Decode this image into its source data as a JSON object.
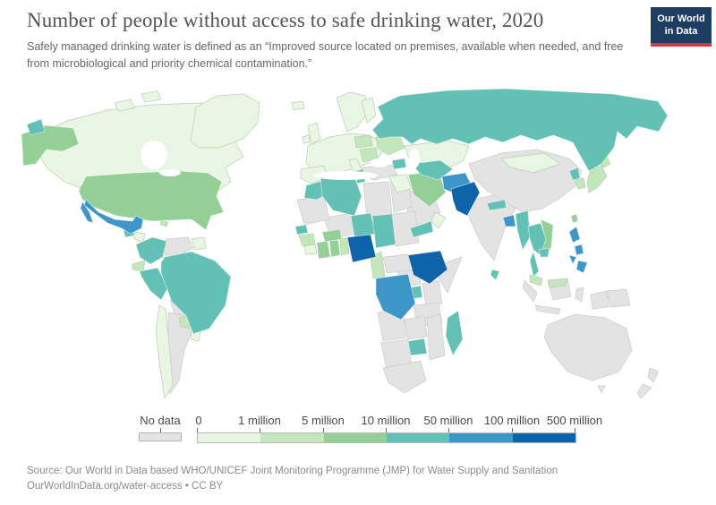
{
  "header": {
    "title": "Number of people without access to safe drinking water, 2020",
    "subtitle": "Safely managed drinking water is defined as an “Improved source located on premises, available when needed, and free from microbiological and priority chemical contamination.”",
    "logo": {
      "line1": "Our World",
      "line2": "in Data",
      "bg_color": "#1d3d63",
      "accent_color": "#d6363f"
    }
  },
  "legend": {
    "no_data_label": "No data",
    "tick_labels": [
      "0",
      "1 million",
      "5 million",
      "10 million",
      "50 million",
      "100 million",
      "500 million"
    ],
    "bar_bins": [
      "0-1m",
      "1-5m",
      "5-10m",
      "10-50m",
      "50-100m",
      "100-500m"
    ]
  },
  "footer": {
    "source_line": "Source: Our World in Data based WHO/UNICEF Joint Monitoring Programme (JMP) for Water Supply and Sanitation",
    "link_line": "OurWorldInData.org/water-access • CC BY"
  },
  "chart_data": {
    "type": "heatmap",
    "subtype": "world-choropleth",
    "title": "Number of people without access to safe drinking water, 2020",
    "year": "2020",
    "legend_position": "bottom",
    "bins": {
      "no-data": {
        "label": "No data",
        "color": "#e3e3e3"
      },
      "0-1m": {
        "label": "0–1 million",
        "color": "#eaf6e4"
      },
      "1-5m": {
        "label": "1–5 million",
        "color": "#c4e6bd"
      },
      "5-10m": {
        "label": "5–10 million",
        "color": "#95cf98"
      },
      "10-50m": {
        "label": "10–50 million",
        "color": "#62c1b4"
      },
      "50-100m": {
        "label": "50–100 million",
        "color": "#3e95c7"
      },
      "100-500m": {
        "label": "100–500 million",
        "color": "#0f63a9"
      }
    },
    "countries": [
      {
        "name": "Venezuela",
        "key": "venezuela",
        "bin": "no-data"
      },
      {
        "name": "Bolivia",
        "key": "bolivia",
        "bin": "no-data"
      },
      {
        "name": "Argentina",
        "key": "argentina",
        "bin": "no-data"
      },
      {
        "name": "Turkey",
        "key": "turkey",
        "bin": "no-data"
      },
      {
        "name": "Saudi Arabia",
        "key": "saudi-arabia",
        "bin": "no-data"
      },
      {
        "name": "India",
        "key": "india",
        "bin": "no-data"
      },
      {
        "name": "China",
        "key": "china",
        "bin": "no-data"
      },
      {
        "name": "Libya",
        "key": "libya",
        "bin": "no-data"
      },
      {
        "name": "Egypt",
        "key": "egypt",
        "bin": "no-data"
      },
      {
        "name": "Mali",
        "key": "mali",
        "bin": "no-data"
      },
      {
        "name": "Mauritania",
        "key": "mauritania",
        "bin": "no-data"
      },
      {
        "name": "Sudan",
        "key": "sudan",
        "bin": "no-data"
      },
      {
        "name": "South Sudan",
        "key": "south-sudan",
        "bin": "no-data"
      },
      {
        "name": "Central African Republic",
        "key": "central-african-republic",
        "bin": "no-data"
      },
      {
        "name": "Somalia",
        "key": "somalia",
        "bin": "no-data"
      },
      {
        "name": "Kenya",
        "key": "kenya",
        "bin": "no-data"
      },
      {
        "name": "Tanzania",
        "key": "tanzania",
        "bin": "no-data"
      },
      {
        "name": "Angola",
        "key": "angola",
        "bin": "no-data"
      },
      {
        "name": "Zambia",
        "key": "zambia",
        "bin": "no-data"
      },
      {
        "name": "Mozambique",
        "key": "mozambique",
        "bin": "no-data"
      },
      {
        "name": "Namibia and Botswana",
        "key": "namibia-botswana",
        "bin": "no-data"
      },
      {
        "name": "South Africa",
        "key": "south-africa",
        "bin": "no-data"
      },
      {
        "name": "Australia",
        "key": "australia",
        "bin": "no-data"
      },
      {
        "name": "Indonesia",
        "key": "indonesia",
        "bin": "no-data"
      },
      {
        "name": "Papua New Guinea",
        "key": "papua-new-guinea",
        "bin": "no-data"
      },
      {
        "name": "New Zealand",
        "key": "new-zealand",
        "bin": "no-data"
      },
      {
        "name": "Canada",
        "key": "canada",
        "bin": "0-1m"
      },
      {
        "name": "Greenland",
        "key": "greenland",
        "bin": "0-1m"
      },
      {
        "name": "Arctic Islands",
        "key": "arctic-islands",
        "bin": "0-1m"
      },
      {
        "name": "Iceland",
        "key": "iceland",
        "bin": "0-1m"
      },
      {
        "name": "United Kingdom",
        "key": "united-kingdom",
        "bin": "0-1m"
      },
      {
        "name": "Ireland",
        "key": "ireland",
        "bin": "0-1m"
      },
      {
        "name": "Scandinavia",
        "key": "scandinavia",
        "bin": "0-1m"
      },
      {
        "name": "Finland",
        "key": "finland",
        "bin": "0-1m"
      },
      {
        "name": "Western Europe",
        "key": "europe-mainland",
        "bin": "0-1m"
      },
      {
        "name": "Spain",
        "key": "spain",
        "bin": "0-1m"
      },
      {
        "name": "Italy",
        "key": "italy",
        "bin": "0-1m"
      },
      {
        "name": "Kazakhstan",
        "key": "kazakhstan",
        "bin": "0-1m"
      },
      {
        "name": "Mongolia",
        "key": "mongolia",
        "bin": "0-1m"
      },
      {
        "name": "Chile",
        "key": "chile",
        "bin": "0-1m"
      },
      {
        "name": "Uruguay",
        "key": "uruguay",
        "bin": "0-1m"
      },
      {
        "name": "Cuba",
        "key": "cuba",
        "bin": "0-1m"
      },
      {
        "name": "Honduras and Nicaragua",
        "key": "honduras-nicaragua",
        "bin": "0-1m"
      },
      {
        "name": "Costa Rica and Panama",
        "key": "costa-rica-panama",
        "bin": "0-1m"
      },
      {
        "name": "Guyana and Suriname",
        "key": "guyana-suriname",
        "bin": "0-1m"
      },
      {
        "name": "Syria and Iraq",
        "key": "syria-iraq",
        "bin": "0-1m"
      },
      {
        "name": "Oman",
        "key": "oman",
        "bin": "0-1m"
      },
      {
        "name": "Sierra Leone and Liberia",
        "key": "sierra-leone-liberia",
        "bin": "0-1m"
      },
      {
        "name": "Ukraine",
        "key": "ukraine",
        "bin": "1-5m"
      },
      {
        "name": "Poland",
        "key": "poland-region",
        "bin": "1-5m"
      },
      {
        "name": "Romania and Balkans",
        "key": "balkans-romania",
        "bin": "1-5m"
      },
      {
        "name": "Ecuador",
        "key": "ecuador",
        "bin": "1-5m"
      },
      {
        "name": "Paraguay",
        "key": "paraguay",
        "bin": "1-5m"
      },
      {
        "name": "Hispaniola",
        "key": "hispaniola",
        "bin": "1-5m"
      },
      {
        "name": "Guinea",
        "key": "guinea",
        "bin": "1-5m"
      },
      {
        "name": "Togo and Benin",
        "key": "togo-benin",
        "bin": "1-5m"
      },
      {
        "name": "Cameroon",
        "key": "cameroon",
        "bin": "1-5m"
      },
      {
        "name": "Malaysia",
        "key": "malaysia",
        "bin": "1-5m"
      },
      {
        "name": "Malaysia (Borneo)",
        "key": "malaysia-borneo",
        "bin": "1-5m"
      },
      {
        "name": "South Korea",
        "key": "south-korea",
        "bin": "1-5m"
      },
      {
        "name": "Japan",
        "key": "japan",
        "bin": "1-5m"
      },
      {
        "name": "United States",
        "key": "united-states",
        "bin": "5-10m"
      },
      {
        "name": "Iran",
        "key": "iran",
        "bin": "5-10m"
      },
      {
        "name": "Côte d'Ivoire",
        "key": "cote-divoire",
        "bin": "5-10m"
      },
      {
        "name": "Ghana",
        "key": "ghana",
        "bin": "5-10m"
      },
      {
        "name": "Burkina Faso",
        "key": "burkina-faso",
        "bin": "5-10m"
      },
      {
        "name": "Laos and Vietnam",
        "key": "laos-vietnam",
        "bin": "5-10m"
      },
      {
        "name": "Taiwan",
        "key": "taiwan",
        "bin": "5-10m"
      },
      {
        "name": "Russia",
        "key": "russia",
        "bin": "10-50m"
      },
      {
        "name": "Russia (Chukotka)",
        "key": "chukotka",
        "bin": "10-50m"
      },
      {
        "name": "Morocco",
        "key": "morocco",
        "bin": "10-50m"
      },
      {
        "name": "Algeria",
        "key": "algeria",
        "bin": "10-50m"
      },
      {
        "name": "Tunisia",
        "key": "tunisia",
        "bin": "10-50m"
      },
      {
        "name": "Niger",
        "key": "niger",
        "bin": "10-50m"
      },
      {
        "name": "Chad",
        "key": "chad",
        "bin": "10-50m"
      },
      {
        "name": "Senegal",
        "key": "senegal",
        "bin": "10-50m"
      },
      {
        "name": "Yemen",
        "key": "yemen",
        "bin": "10-50m"
      },
      {
        "name": "Uganda",
        "key": "uganda",
        "bin": "10-50m"
      },
      {
        "name": "Zimbabwe",
        "key": "zimbabwe",
        "bin": "10-50m"
      },
      {
        "name": "Madagascar",
        "key": "madagascar",
        "bin": "10-50m"
      },
      {
        "name": "Uzbekistan and Turkmenistan",
        "key": "central-asia",
        "bin": "10-50m"
      },
      {
        "name": "Azerbaijan",
        "key": "caucasus",
        "bin": "10-50m"
      },
      {
        "name": "Guatemala",
        "key": "guatemala",
        "bin": "10-50m"
      },
      {
        "name": "Colombia",
        "key": "colombia",
        "bin": "10-50m"
      },
      {
        "name": "Peru",
        "key": "peru",
        "bin": "10-50m"
      },
      {
        "name": "Brazil",
        "key": "brazil",
        "bin": "10-50m"
      },
      {
        "name": "Myanmar",
        "key": "myanmar",
        "bin": "10-50m"
      },
      {
        "name": "Thailand",
        "key": "thailand",
        "bin": "10-50m"
      },
      {
        "name": "Cambodia",
        "key": "cambodia",
        "bin": "10-50m"
      },
      {
        "name": "Nepal",
        "key": "nepal",
        "bin": "10-50m"
      },
      {
        "name": "North Korea",
        "key": "north-korea",
        "bin": "10-50m"
      },
      {
        "name": "Sri Lanka",
        "key": "sri-lanka",
        "bin": "10-50m"
      },
      {
        "name": "Mexico",
        "key": "mexico",
        "bin": "50-100m"
      },
      {
        "name": "Afghanistan",
        "key": "afghanistan",
        "bin": "50-100m"
      },
      {
        "name": "Bangladesh",
        "key": "bangladesh",
        "bin": "50-100m"
      },
      {
        "name": "Philippines",
        "key": "philippines",
        "bin": "50-100m"
      },
      {
        "name": "Democratic Republic of Congo",
        "key": "drc",
        "bin": "50-100m"
      },
      {
        "name": "Pakistan",
        "key": "pakistan",
        "bin": "100-500m"
      },
      {
        "name": "Nigeria",
        "key": "nigeria",
        "bin": "100-500m"
      },
      {
        "name": "Ethiopia",
        "key": "ethiopia",
        "bin": "100-500m"
      }
    ]
  }
}
